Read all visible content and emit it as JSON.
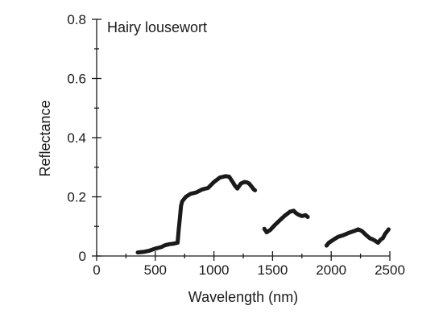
{
  "chart_data": {
    "type": "line",
    "title": "Hairy lousewort",
    "xlabel": "Wavelength (nm)",
    "ylabel": "Reflectance",
    "xlim": [
      0,
      2500
    ],
    "ylim": [
      0,
      0.8
    ],
    "x_ticks": [
      0,
      500,
      1000,
      1500,
      2000,
      2500
    ],
    "x_tick_labels": [
      "0",
      "500",
      "1000",
      "1500",
      "2000",
      "2500"
    ],
    "x_minor_ticks": [
      250,
      750,
      1250,
      1750,
      2250
    ],
    "y_ticks": [
      0,
      0.2,
      0.4,
      0.6,
      0.8
    ],
    "y_tick_labels": [
      "0",
      "0.2",
      "0.4",
      "0.6",
      "0.8"
    ],
    "y_minor_ticks": [
      0.1,
      0.3,
      0.5,
      0.7
    ],
    "grid": false,
    "line_color": "#1a1a1a",
    "series": [
      {
        "segments": [
          {
            "x": [
              350,
              400,
              450,
              500,
              550,
              580,
              620,
              660,
              690,
              700,
              710,
              720,
              730,
              760,
              800,
              850,
              900,
              950,
              1000,
              1050,
              1080,
              1100,
              1130,
              1160,
              1180,
              1200,
              1230,
              1260,
              1280,
              1300,
              1320,
              1340,
              1350
            ],
            "y": [
              0.012,
              0.014,
              0.018,
              0.025,
              0.03,
              0.036,
              0.04,
              0.042,
              0.045,
              0.09,
              0.13,
              0.17,
              0.185,
              0.2,
              0.21,
              0.215,
              0.225,
              0.23,
              0.25,
              0.265,
              0.268,
              0.27,
              0.268,
              0.25,
              0.237,
              0.228,
              0.245,
              0.25,
              0.249,
              0.245,
              0.235,
              0.225,
              0.222
            ]
          },
          {
            "x": [
              1430,
              1450,
              1480,
              1520,
              1560,
              1600,
              1650,
              1680,
              1700,
              1720,
              1750,
              1780,
              1800
            ],
            "y": [
              0.092,
              0.08,
              0.088,
              0.105,
              0.12,
              0.135,
              0.15,
              0.153,
              0.145,
              0.14,
              0.135,
              0.138,
              0.132
            ]
          },
          {
            "x": [
              1960,
              1980,
              2000,
              2030,
              2060,
              2100,
              2150,
              2200,
              2230,
              2260,
              2300,
              2330,
              2360,
              2380,
              2400,
              2420,
              2440,
              2460,
              2480,
              2490
            ],
            "y": [
              0.035,
              0.045,
              0.05,
              0.058,
              0.065,
              0.07,
              0.078,
              0.085,
              0.09,
              0.085,
              0.07,
              0.06,
              0.055,
              0.05,
              0.045,
              0.055,
              0.06,
              0.075,
              0.085,
              0.09
            ]
          }
        ]
      }
    ]
  }
}
